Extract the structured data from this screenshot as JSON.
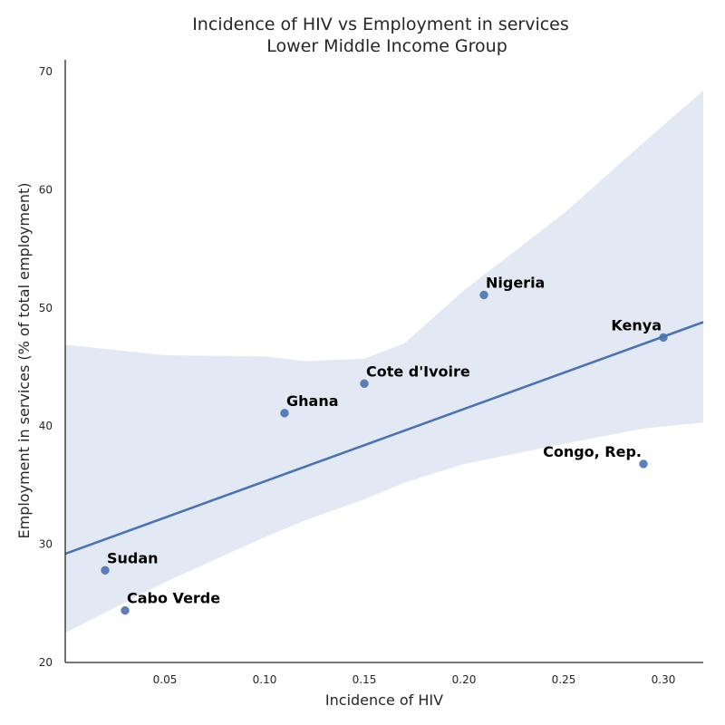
{
  "chart_data": {
    "type": "scatter",
    "title": "Incidence of HIV vs Employment in services",
    "subtitle": "Lower Middle Income Group",
    "xlabel": "Incidence of HIV",
    "ylabel": "Employment in services (% of total employment)",
    "xlim": [
      0.0,
      0.32
    ],
    "ylim": [
      20,
      71
    ],
    "xticks": [
      0.05,
      0.1,
      0.15,
      0.2,
      0.25,
      0.3
    ],
    "xtick_labels": [
      "0.05",
      "0.10",
      "0.15",
      "0.20",
      "0.25",
      "0.30"
    ],
    "yticks": [
      20,
      30,
      40,
      50,
      60,
      70
    ],
    "ytick_labels": [
      "20",
      "30",
      "40",
      "50",
      "60",
      "70"
    ],
    "grid": false,
    "legend": "none",
    "points": [
      {
        "label": "Nigeria",
        "x": 0.21,
        "y": 51.1
      },
      {
        "label": "Kenya",
        "x": 0.3,
        "y": 47.5
      },
      {
        "label": "Cote d'Ivoire",
        "x": 0.15,
        "y": 43.6
      },
      {
        "label": "Ghana",
        "x": 0.11,
        "y": 41.1
      },
      {
        "label": "Congo, Rep.",
        "x": 0.29,
        "y": 36.8
      },
      {
        "label": "Sudan",
        "x": 0.02,
        "y": 27.8
      },
      {
        "label": "Cabo Verde",
        "x": 0.03,
        "y": 24.4
      }
    ],
    "regression_line": {
      "x": [
        0.0,
        0.32
      ],
      "y": [
        29.2,
        48.8
      ]
    },
    "confidence_band": {
      "x": [
        0.0,
        0.05,
        0.1,
        0.12,
        0.15,
        0.17,
        0.2,
        0.25,
        0.29,
        0.32
      ],
      "lower": [
        22.5,
        26.8,
        30.6,
        32.0,
        33.8,
        35.2,
        36.8,
        38.5,
        39.8,
        40.3
      ],
      "upper": [
        46.9,
        46.0,
        45.9,
        45.5,
        45.7,
        47.0,
        51.5,
        58.0,
        64.0,
        68.4
      ]
    },
    "colors": {
      "points": "#4c72b0",
      "line": "#4c72b0",
      "band": "#dbe3f1",
      "axis": "#262626"
    }
  }
}
